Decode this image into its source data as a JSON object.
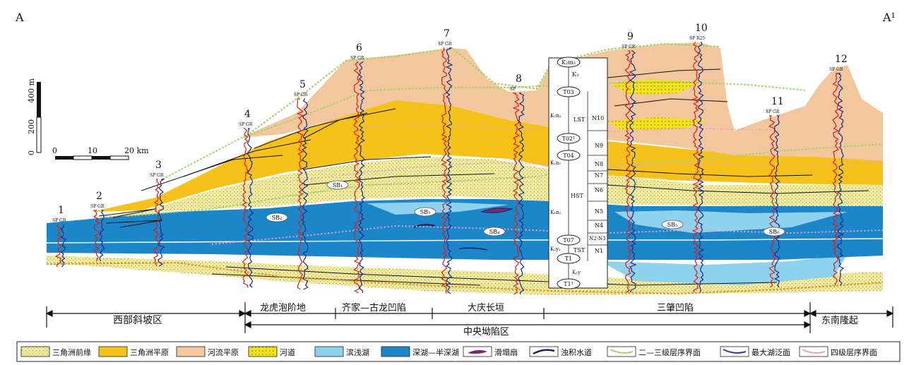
{
  "corner_left": "A",
  "corner_right": "A¹",
  "scale": {
    "v_0": "0",
    "v_200": "200",
    "v_400": "400 m",
    "h_0": "0",
    "h_10": "10",
    "h_20": "20 km"
  },
  "wells": [
    {
      "no": "1",
      "log": "SP GR"
    },
    {
      "no": "2",
      "log": "SP GR"
    },
    {
      "no": "3",
      "log": "SP GR"
    },
    {
      "no": "4",
      "log": "SP GR"
    },
    {
      "no": "5",
      "log": "SP GR"
    },
    {
      "no": "6",
      "log": "SP GR"
    },
    {
      "no": "7",
      "log": "SP GR"
    },
    {
      "no": "8",
      "log": "SP"
    },
    {
      "no": "9",
      "log": "SP GR"
    },
    {
      "no": "10",
      "log": "SP R25"
    },
    {
      "no": "11",
      "log": "SP GR"
    },
    {
      "no": "12",
      "log": "SP GR"
    }
  ],
  "column": {
    "ovals": [
      "K₂m₂",
      "T03",
      "T02¹",
      "T04",
      "T07",
      "T1",
      "T1¹"
    ],
    "formations": [
      "K₃",
      "K₂n₂",
      "K₂n₁",
      "K₂n₂",
      "K₂y₁",
      "K₁y"
    ],
    "systems": [
      "LST",
      "HST",
      "TST"
    ],
    "units": [
      "N10",
      "N9",
      "N8",
      "N7",
      "N6",
      "N5",
      "N4",
      "N2-N3",
      "N1"
    ]
  },
  "sb_labels": [
    "SB₂",
    "SB₁",
    "SB₃",
    "SB₄",
    "SB₅",
    "SB₆"
  ],
  "regions": {
    "west_slope": "西部斜坡区",
    "longhupao": "龙虎泡阶地",
    "qijia": "齐家—古龙凹陷",
    "daqing": "大庆长垣",
    "sanzhao": "三肇凹陷",
    "southeast": "东南隆起",
    "central": "中央坳陷区"
  },
  "legend": [
    {
      "label": "三角洲前缘",
      "kind": "sw-dots",
      "color": "#f3ec9e"
    },
    {
      "label": "三角洲平原",
      "kind": "sw",
      "color": "#f6c21a"
    },
    {
      "label": "河流平原",
      "kind": "sw",
      "color": "#f2c79e"
    },
    {
      "label": "河道",
      "kind": "sw-dots",
      "color": "#f4e21a"
    },
    {
      "label": "滨浅湖",
      "kind": "sw",
      "color": "#8fd2ee"
    },
    {
      "label": "深湖—半深湖",
      "kind": "sw",
      "color": "#1b87c9"
    },
    {
      "label": "滑塌扇",
      "kind": "fan",
      "color": "#7a2a6a"
    },
    {
      "label": "浊积水道",
      "kind": "chan",
      "color": "#2a1f5a"
    },
    {
      "label": "二—三级层序界面",
      "kind": "line",
      "color": "#a8d36a"
    },
    {
      "label": "最大湖泛面",
      "kind": "line",
      "color": "#2a3ea0"
    },
    {
      "label": "四级层序界面",
      "kind": "line",
      "color": "#e8a0c8"
    }
  ]
}
